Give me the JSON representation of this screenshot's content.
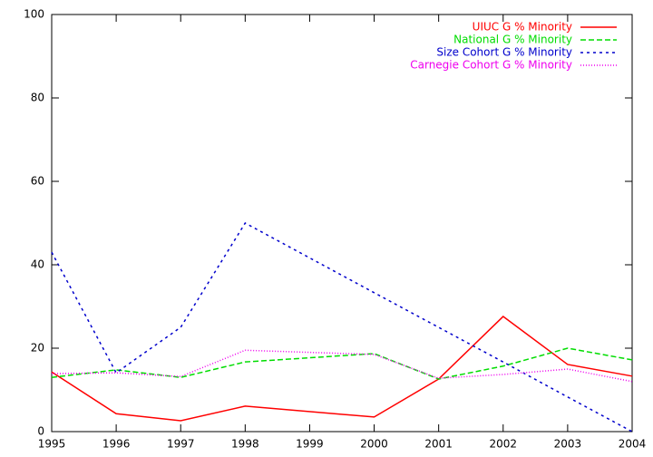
{
  "chart_data": {
    "type": "line",
    "x": [
      1995,
      1996,
      1997,
      1998,
      2000,
      2001,
      2002,
      2003,
      2004
    ],
    "series": [
      {
        "name": "UIUC G % Minority",
        "color": "#ff0000",
        "values": [
          14.3,
          4.3,
          2.6,
          6.1,
          3.5,
          12.6,
          27.6,
          16.1,
          13.3
        ]
      },
      {
        "name": "National G % Minority",
        "color": "#00dd00",
        "values": [
          13,
          14.8,
          13,
          16.7,
          18.7,
          12.6,
          15.7,
          20,
          17.2
        ]
      },
      {
        "name": "Size Cohort G % Minority",
        "color": "#0000cc",
        "values": [
          43,
          14.1,
          25,
          50,
          33.3,
          25,
          16.7,
          8.3,
          0
        ]
      },
      {
        "name": "Carnegie Cohort G % Minority",
        "color": "#ee00ee",
        "values": [
          13.9,
          14.1,
          13.2,
          19.5,
          18.5,
          12.8,
          13.7,
          15,
          12
        ]
      }
    ],
    "xlim": [
      1995,
      2004
    ],
    "xticks": [
      1995,
      1996,
      1997,
      1998,
      1999,
      2000,
      2001,
      2002,
      2003,
      2004
    ],
    "ylim": [
      0,
      100
    ],
    "yticks": [
      0,
      20,
      40,
      60,
      80,
      100
    ],
    "legend": "top-right"
  }
}
